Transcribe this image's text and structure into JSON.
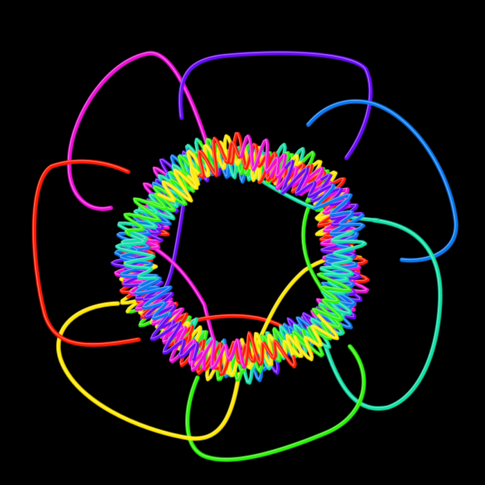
{
  "scene": {
    "background": "#000000",
    "subject": "multicolored-tube-knot",
    "symmetry": 5,
    "palette": {
      "red": "#ff1a00",
      "magenta": "#ee10d8",
      "violet": "#6a0cf5",
      "blue": "#0a78f0",
      "teal": "#12e0a8",
      "green": "#2ef20a",
      "yellow": "#ffe800"
    },
    "loops": [
      {
        "name": "red-loop",
        "color": "#ff1a00"
      },
      {
        "name": "magenta-loop",
        "color": "#ee10d8"
      },
      {
        "name": "violet-loop",
        "color": "#6a0cf5"
      },
      {
        "name": "blue-loop",
        "color": "#0a78f0"
      },
      {
        "name": "teal-loop",
        "color": "#12e0a8"
      },
      {
        "name": "green-loop",
        "color": "#2ef20a"
      },
      {
        "name": "yellow-loop",
        "color": "#ffe800"
      }
    ],
    "ring_colors": [
      "#ff1a00",
      "#ee10d8",
      "#6a0cf5",
      "#0a78f0",
      "#12e0a8",
      "#2ef20a",
      "#ffe800"
    ]
  }
}
